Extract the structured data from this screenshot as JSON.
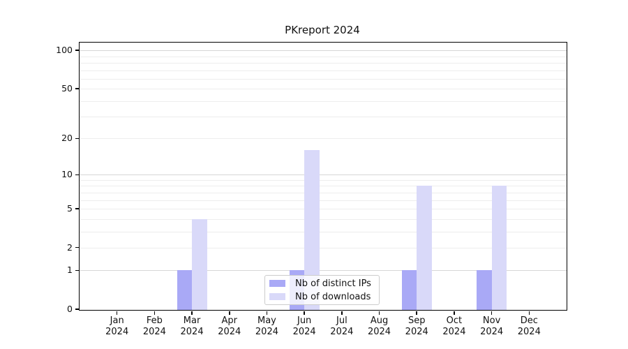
{
  "chart_data": {
    "type": "bar",
    "title": "PKreport 2024",
    "year": "2024",
    "months": [
      "Jan",
      "Feb",
      "Mar",
      "Apr",
      "May",
      "Jun",
      "Jul",
      "Aug",
      "Sep",
      "Oct",
      "Nov",
      "Dec"
    ],
    "series": [
      {
        "name": "Nb of distinct IPs",
        "color": "#a9a9f6",
        "values": [
          0,
          0,
          1,
          0,
          0,
          1,
          0,
          0,
          1,
          0,
          1,
          0
        ]
      },
      {
        "name": "Nb of downloads",
        "color": "#d9d9f9",
        "values": [
          0,
          0,
          4,
          0,
          0,
          16,
          0,
          0,
          8,
          0,
          8,
          0
        ]
      }
    ],
    "y_axis": {
      "scale": "log10(1+x)",
      "ticks": [
        0,
        1,
        2,
        5,
        10,
        20,
        50,
        100
      ],
      "major_gridlines": [
        1,
        10,
        100
      ],
      "minor_gridlines": [
        2,
        3,
        4,
        5,
        6,
        7,
        8,
        9,
        20,
        30,
        40,
        50,
        60,
        70,
        80,
        90
      ],
      "ylim": [
        0,
        113
      ]
    },
    "grid": true,
    "legend_position": "inside-bottom-center"
  }
}
